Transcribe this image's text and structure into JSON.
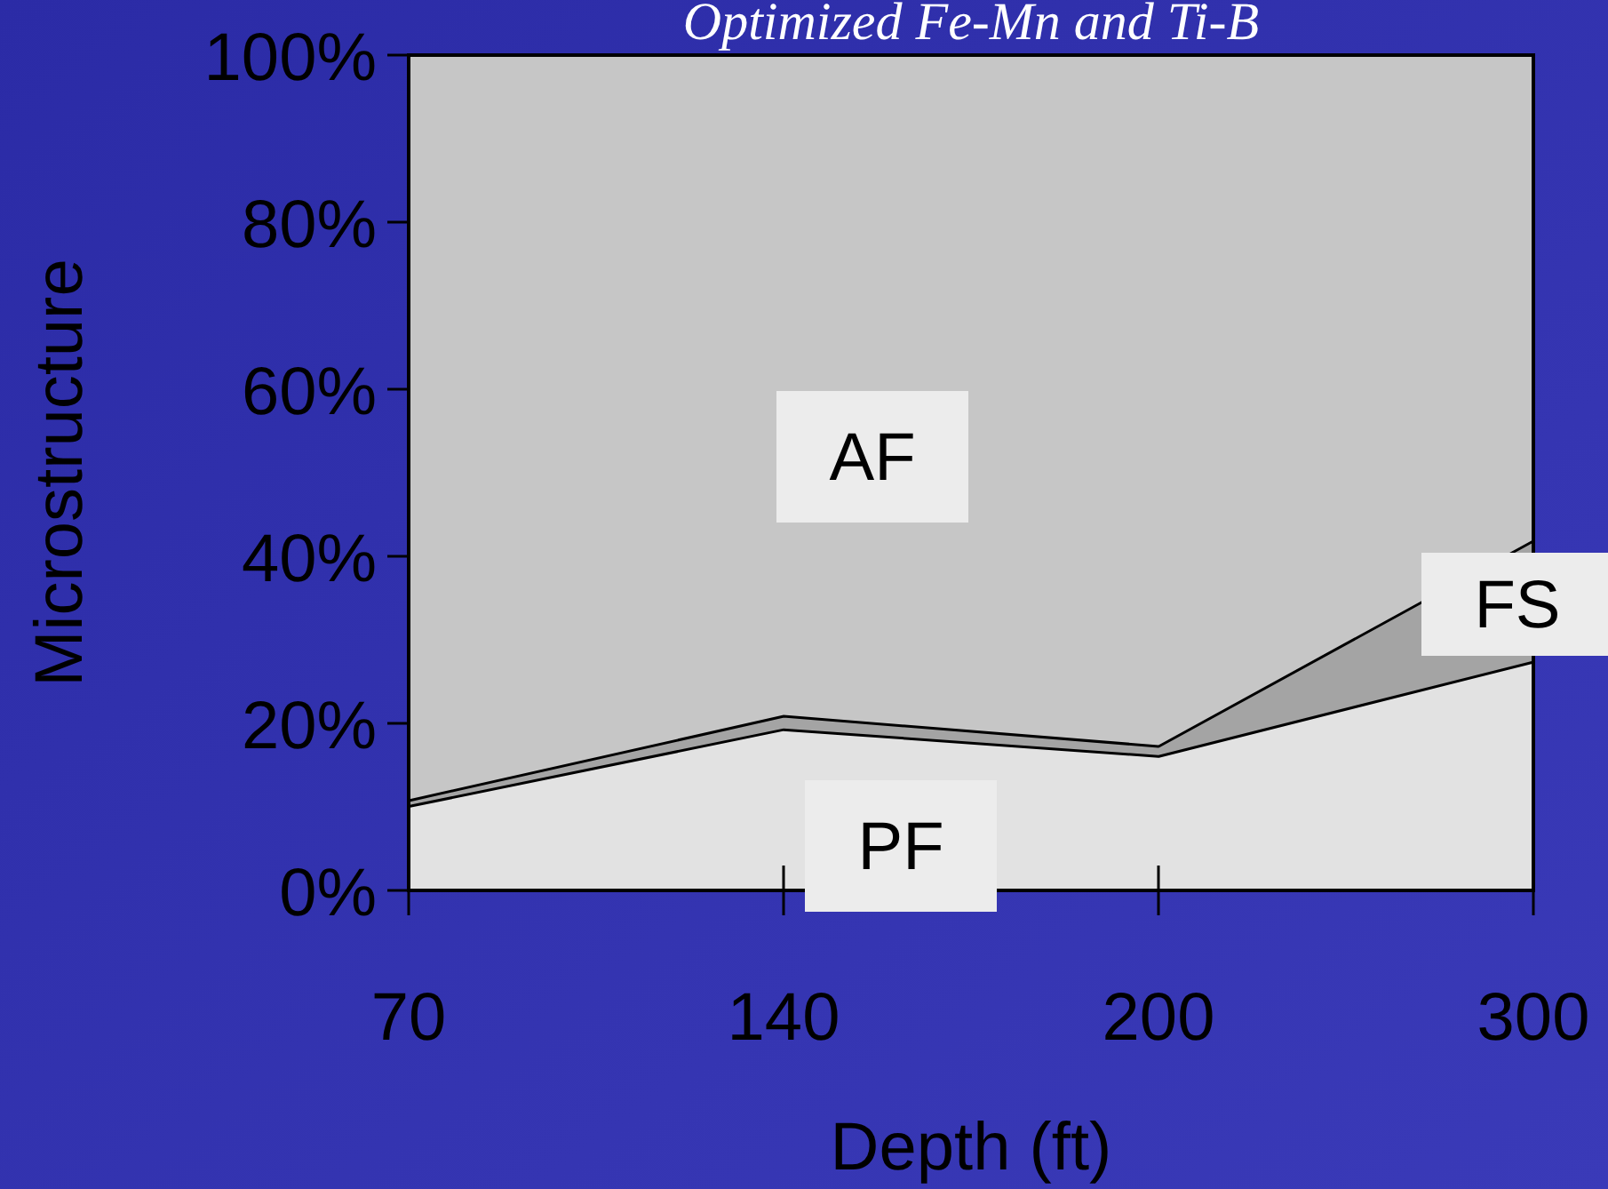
{
  "chart_data": {
    "type": "area",
    "stacked": true,
    "title": "Optimized Fe-Mn and Ti-B",
    "xlabel": "Depth (ft)",
    "ylabel": "Microstructure",
    "categories": [
      "70",
      "140",
      "200",
      "300"
    ],
    "series": [
      {
        "name": "PF",
        "color": "#e2e2e2",
        "values": [
          10.2,
          19.4,
          16.2,
          27.5
        ]
      },
      {
        "name": "FS",
        "color": "#a4a4a4",
        "values": [
          0.7,
          1.6,
          1.2,
          14.5
        ]
      },
      {
        "name": "AF",
        "color": "#c6c6c6",
        "values": [
          89.1,
          79,
          82.6,
          58
        ]
      }
    ],
    "ylim": [
      0,
      100
    ],
    "yticks": [
      {
        "value": 0,
        "label": "0%"
      },
      {
        "value": 20,
        "label": "20%"
      },
      {
        "value": 40,
        "label": "40%"
      },
      {
        "value": 60,
        "label": "60%"
      },
      {
        "value": 80,
        "label": "80%"
      },
      {
        "value": 100,
        "label": "100%"
      }
    ],
    "grid": false
  }
}
